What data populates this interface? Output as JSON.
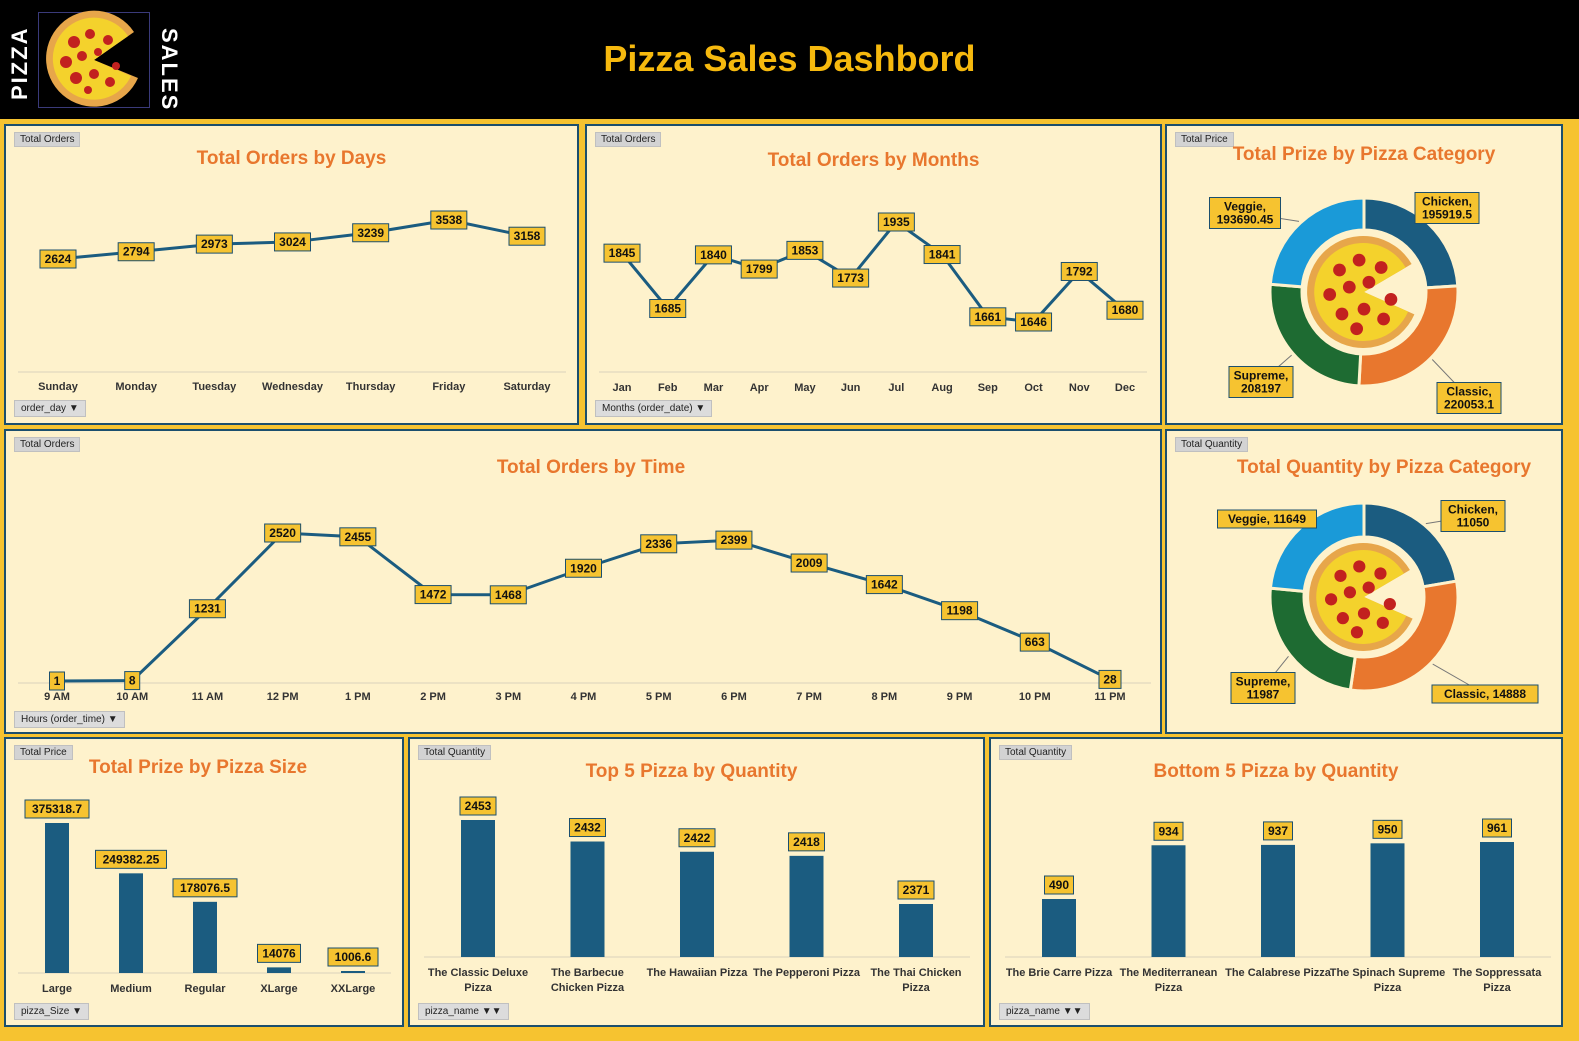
{
  "header": {
    "title": "Pizza Sales Dashbord",
    "logo_left": "PIZZA",
    "logo_right": "SALES"
  },
  "colors": {
    "line": "#1b5c80",
    "bar": "#1b5c80",
    "label_fill": "#f6c330",
    "title": "#e8772e",
    "chicken": "#1b5c80",
    "classic": "#e8772e",
    "supreme": "#1e6b32",
    "veggie": "#1a9ad8"
  },
  "panels": {
    "days": {
      "tag": "Total Orders",
      "title": "Total Orders by Days",
      "filter": "order_day"
    },
    "months": {
      "tag": "Total Orders",
      "title": "Total Orders by Months",
      "filter": "Months (order_date)"
    },
    "cat_price": {
      "tag": "Total Price",
      "title": "Total Prize by Pizza Category"
    },
    "time": {
      "tag": "Total Orders",
      "title": "Total Orders by Time",
      "filter": "Hours (order_time)"
    },
    "cat_qty": {
      "tag": "Total Quantity",
      "title": "Total Quantity by Pizza Category"
    },
    "size": {
      "tag": "Total Price",
      "title": "Total Prize by Pizza Size",
      "filter": "pizza_Size"
    },
    "top5": {
      "tag": "Total Quantity",
      "title": "Top 5 Pizza by Quantity",
      "filter": "pizza_name"
    },
    "bottom5": {
      "tag": "Total Quantity",
      "title": "Bottom 5 Pizza by Quantity",
      "filter": "pizza_name"
    }
  },
  "chart_data": [
    {
      "id": "days",
      "type": "line",
      "categories": [
        "Sunday",
        "Monday",
        "Tuesday",
        "Wednesday",
        "Thursday",
        "Friday",
        "Saturday"
      ],
      "values": [
        2624,
        2794,
        2973,
        3024,
        3239,
        3538,
        3158
      ],
      "title": "Total Orders by Days"
    },
    {
      "id": "months",
      "type": "line",
      "categories": [
        "Jan",
        "Feb",
        "Mar",
        "Apr",
        "May",
        "Jun",
        "Jul",
        "Aug",
        "Sep",
        "Oct",
        "Nov",
        "Dec"
      ],
      "values": [
        1845,
        1685,
        1840,
        1799,
        1853,
        1773,
        1935,
        1841,
        1661,
        1646,
        1792,
        1680
      ],
      "title": "Total Orders by Months"
    },
    {
      "id": "time",
      "type": "line",
      "categories": [
        "9 AM",
        "10 AM",
        "11 AM",
        "12 PM",
        "1 PM",
        "2 PM",
        "3 PM",
        "4 PM",
        "5 PM",
        "6 PM",
        "7 PM",
        "8 PM",
        "9 PM",
        "10 PM",
        "11 PM"
      ],
      "values": [
        1,
        8,
        1231,
        2520,
        2455,
        1472,
        1468,
        1920,
        2336,
        2399,
        2009,
        1642,
        1198,
        663,
        28
      ],
      "title": "Total Orders by Time"
    },
    {
      "id": "cat_price",
      "type": "pie",
      "categories": [
        "Chicken",
        "Classic",
        "Supreme",
        "Veggie"
      ],
      "values": [
        195919.5,
        220053.1,
        208197,
        193690.45
      ],
      "labels": [
        [
          "Chicken,",
          "195919.5"
        ],
        [
          "Classic,",
          "220053.1"
        ],
        [
          "Supreme,",
          "208197"
        ],
        [
          "Veggie,",
          "193690.45"
        ]
      ],
      "title": "Total Prize by Pizza Category"
    },
    {
      "id": "cat_qty",
      "type": "pie",
      "categories": [
        "Chicken",
        "Classic",
        "Supreme",
        "Veggie"
      ],
      "values": [
        11050,
        14888,
        11987,
        11649
      ],
      "labels": [
        [
          "Chicken,",
          "11050"
        ],
        [
          "Classic, 14888"
        ],
        [
          "Supreme,",
          "11987"
        ],
        [
          "Veggie, 11649"
        ]
      ],
      "title": "Total Quantity by Pizza Category"
    },
    {
      "id": "size",
      "type": "bar",
      "categories": [
        "Large",
        "Medium",
        "Regular",
        "XLarge",
        "XXLarge"
      ],
      "values": [
        375318.7,
        249382.25,
        178076.5,
        14076,
        1006.6
      ],
      "labels": [
        "375318.7",
        "249382.25",
        "178076.5",
        "14076",
        "1006.6"
      ],
      "title": "Total Prize by Pizza Size"
    },
    {
      "id": "top5",
      "type": "bar",
      "categories": [
        [
          "The Classic Deluxe",
          "Pizza"
        ],
        [
          "The Barbecue",
          "Chicken Pizza"
        ],
        [
          "The Hawaiian Pizza"
        ],
        [
          "The Pepperoni Pizza"
        ],
        [
          "The Thai Chicken",
          "Pizza"
        ]
      ],
      "values": [
        2453,
        2432,
        2422,
        2418,
        2371
      ],
      "title": "Top 5 Pizza by Quantity"
    },
    {
      "id": "bottom5",
      "type": "bar",
      "categories": [
        [
          "The Brie Carre Pizza"
        ],
        [
          "The Mediterranean",
          "Pizza"
        ],
        [
          "The Calabrese Pizza"
        ],
        [
          "The Spinach Supreme",
          "Pizza"
        ],
        [
          "The Soppressata",
          "Pizza"
        ]
      ],
      "values": [
        490,
        934,
        937,
        950,
        961
      ],
      "title": "Bottom 5 Pizza by Quantity"
    }
  ]
}
